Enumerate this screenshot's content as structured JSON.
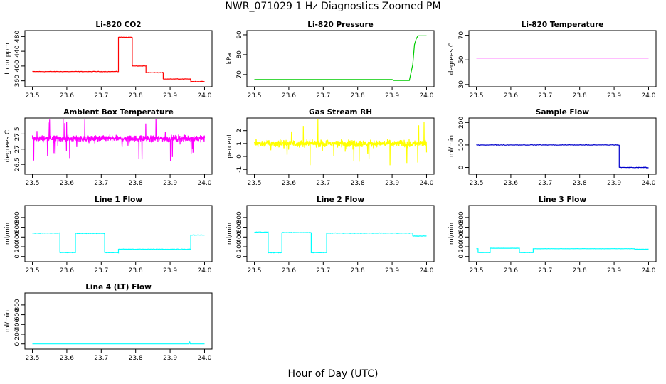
{
  "page": {
    "title": "NWR_071029  1 Hz Diagnostics Zoomed PM",
    "xlabel": "Hour of Day (UTC)"
  },
  "chart_data": [
    {
      "type": "line",
      "title": "Li-820 CO2",
      "ylabel": "Licor ppm",
      "xlabel": "",
      "color": "#ff0000",
      "xlim": [
        23.5,
        24.0
      ],
      "ylim": [
        350,
        490
      ],
      "xticks": [
        23.5,
        23.6,
        23.7,
        23.8,
        23.9,
        24.0
      ],
      "yticks": [
        360,
        400,
        440,
        480
      ],
      "series": [
        {
          "kind": "steps",
          "noise": 1.0,
          "segments": [
            [
              23.5,
              23.75,
              385
            ],
            [
              23.75,
              23.79,
              478
            ],
            [
              23.79,
              23.83,
              400
            ],
            [
              23.83,
              23.88,
              382
            ],
            [
              23.88,
              23.96,
              365
            ],
            [
              23.96,
              24.0,
              358
            ]
          ]
        }
      ]
    },
    {
      "type": "line",
      "title": "Li-820 Pressure",
      "ylabel": "kPa",
      "xlabel": "",
      "color": "#00cc00",
      "xlim": [
        23.5,
        24.0
      ],
      "ylim": [
        65,
        91
      ],
      "xticks": [
        23.5,
        23.6,
        23.7,
        23.8,
        23.9,
        24.0
      ],
      "yticks": [
        70,
        80,
        90
      ],
      "series": [
        {
          "kind": "points",
          "values": [
            [
              23.5,
              67.5
            ],
            [
              23.9,
              67.5
            ],
            [
              23.905,
              67.0
            ],
            [
              23.95,
              67.0
            ],
            [
              23.96,
              75
            ],
            [
              23.965,
              85
            ],
            [
              23.97,
              88
            ],
            [
              23.975,
              89.5
            ],
            [
              24.0,
              89.5
            ]
          ]
        }
      ]
    },
    {
      "type": "line",
      "title": "Li-820 Temperature",
      "ylabel": "degrees C",
      "xlabel": "",
      "color": "#ff00ff",
      "xlim": [
        23.5,
        24.0
      ],
      "ylim": [
        30,
        72
      ],
      "xticks": [
        23.5,
        23.6,
        23.7,
        23.8,
        23.9,
        24.0
      ],
      "yticks": [
        30,
        50,
        70
      ],
      "series": [
        {
          "kind": "points",
          "values": [
            [
              23.5,
              51.5
            ],
            [
              24.0,
              51.5
            ]
          ]
        }
      ]
    },
    {
      "type": "line",
      "title": "Ambient Box Temperature",
      "ylabel": "degrees C",
      "xlabel": "",
      "color": "#ff00ff",
      "xlim": [
        23.5,
        24.0
      ],
      "ylim": [
        26.25,
        27.95
      ],
      "xticks": [
        23.5,
        23.6,
        23.7,
        23.8,
        23.9,
        24.0
      ],
      "yticks": [
        26.5,
        27.0,
        27.5
      ],
      "series": [
        {
          "kind": "noise",
          "mean": 27.35,
          "amp": 0.15,
          "spike": 0.7,
          "segments": [
            [
              23.5,
              24.0
            ]
          ]
        }
      ]
    },
    {
      "type": "line",
      "title": "Gas Stream RH",
      "ylabel": "percent",
      "xlabel": "",
      "color": "#ffff00",
      "xlim": [
        23.5,
        24.0
      ],
      "ylim": [
        -1.2,
        2.8
      ],
      "xticks": [
        23.5,
        23.6,
        23.7,
        23.8,
        23.9,
        24.0
      ],
      "yticks": [
        -1,
        0,
        1,
        2
      ],
      "series": [
        {
          "kind": "noise",
          "mean": 1.0,
          "amp": 0.4,
          "spike": 1.8,
          "segments": [
            [
              23.5,
              24.0
            ]
          ]
        }
      ]
    },
    {
      "type": "line",
      "title": "Sample Flow",
      "ylabel": "ml/min",
      "xlabel": "",
      "color": "#0000cc",
      "xlim": [
        23.5,
        24.0
      ],
      "ylim": [
        -20,
        210
      ],
      "xticks": [
        23.5,
        23.6,
        23.7,
        23.8,
        23.9,
        24.0
      ],
      "yticks": [
        0,
        100,
        200
      ],
      "series": [
        {
          "kind": "steps",
          "noise": 2,
          "segments": [
            [
              23.5,
              23.915,
              100
            ],
            [
              23.915,
              24.0,
              0
            ]
          ]
        }
      ]
    },
    {
      "type": "line",
      "title": "Line 1 Flow",
      "ylabel": "ml/min",
      "xlabel": "",
      "color": "#00ffff",
      "xlim": [
        23.5,
        24.0
      ],
      "ylim": [
        -60,
        1000
      ],
      "xticks": [
        23.5,
        23.6,
        23.7,
        23.8,
        23.9,
        24.0
      ],
      "yticks": [
        0,
        200,
        400,
        600,
        800
      ],
      "series": [
        {
          "kind": "steps",
          "noise": 8,
          "segments": [
            [
              23.5,
              23.58,
              480
            ],
            [
              23.58,
              23.625,
              80
            ],
            [
              23.625,
              23.71,
              475
            ],
            [
              23.71,
              23.75,
              80
            ],
            [
              23.75,
              23.96,
              150
            ],
            [
              23.96,
              24.0,
              440
            ]
          ]
        }
      ]
    },
    {
      "type": "line",
      "title": "Line 2 Flow",
      "ylabel": "ml/min",
      "xlabel": "",
      "color": "#00ffff",
      "xlim": [
        23.5,
        24.0
      ],
      "ylim": [
        -60,
        1000
      ],
      "xticks": [
        23.5,
        23.6,
        23.7,
        23.8,
        23.9,
        24.0
      ],
      "yticks": [
        0,
        200,
        400,
        600,
        800
      ],
      "series": [
        {
          "kind": "steps",
          "noise": 8,
          "segments": [
            [
              23.5,
              23.54,
              500
            ],
            [
              23.54,
              23.58,
              80
            ],
            [
              23.58,
              23.665,
              490
            ],
            [
              23.665,
              23.71,
              80
            ],
            [
              23.71,
              23.96,
              480
            ],
            [
              23.96,
              24.0,
              420
            ]
          ]
        }
      ]
    },
    {
      "type": "line",
      "title": "Line 3 Flow",
      "ylabel": "ml/min",
      "xlabel": "",
      "color": "#00ffff",
      "xlim": [
        23.5,
        24.0
      ],
      "ylim": [
        -60,
        1000
      ],
      "xticks": [
        23.5,
        23.6,
        23.7,
        23.8,
        23.9,
        24.0
      ],
      "yticks": [
        0,
        200,
        400,
        600,
        800
      ],
      "series": [
        {
          "kind": "steps",
          "noise": 3,
          "segments": [
            [
              23.5,
              23.505,
              160
            ],
            [
              23.505,
              23.54,
              80
            ],
            [
              23.54,
              23.625,
              170
            ],
            [
              23.625,
              23.665,
              80
            ],
            [
              23.665,
              23.96,
              160
            ],
            [
              23.96,
              24.0,
              150
            ]
          ]
        }
      ]
    },
    {
      "type": "line",
      "title": "Line 4 (LT) Flow",
      "ylabel": "ml/min",
      "xlabel": "",
      "color": "#00ffff",
      "xlim": [
        23.5,
        24.0
      ],
      "ylim": [
        -60,
        1000
      ],
      "xticks": [
        23.5,
        23.6,
        23.7,
        23.8,
        23.9,
        24.0
      ],
      "yticks": [
        0,
        200,
        400,
        600,
        800
      ],
      "series": [
        {
          "kind": "points",
          "values": [
            [
              23.5,
              0
            ],
            [
              23.955,
              0
            ],
            [
              23.957,
              40
            ],
            [
              23.959,
              0
            ],
            [
              24.0,
              0
            ]
          ]
        }
      ]
    }
  ]
}
